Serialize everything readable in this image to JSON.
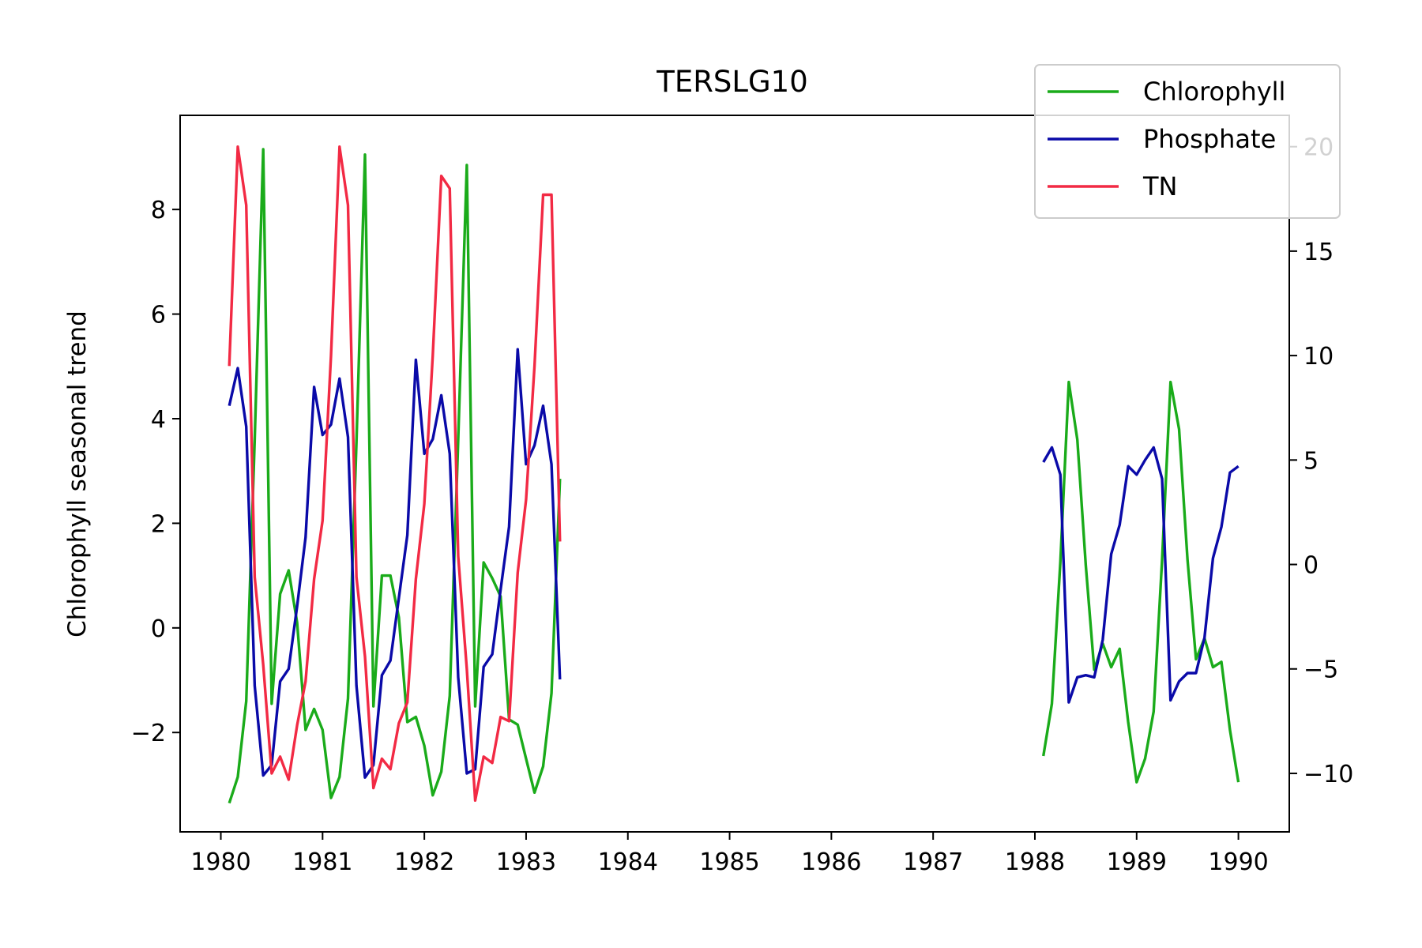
{
  "chart_data": {
    "type": "line",
    "title": "TERSLG10",
    "xlabel": "",
    "ylabel": "Chlorophyll seasonal trend",
    "y2label": "",
    "xlim": [
      1979.6,
      1990.5
    ],
    "ylim": [
      -3.9,
      9.8
    ],
    "y2lim": [
      -12.8,
      21.5
    ],
    "xticks": [
      1980,
      1981,
      1982,
      1983,
      1984,
      1985,
      1986,
      1987,
      1988,
      1989,
      1990
    ],
    "yticks": [
      -2,
      0,
      2,
      4,
      6,
      8
    ],
    "y2ticks": [
      -10,
      -5,
      0,
      5,
      10,
      15,
      20
    ],
    "ytick_labels": [
      "−2",
      "0",
      "2",
      "4",
      "6",
      "8"
    ],
    "y2tick_labels": [
      "−10",
      "−5",
      "0",
      "5",
      "10",
      "15",
      "20"
    ],
    "xtick_labels": [
      "1980",
      "1981",
      "1982",
      "1983",
      "1984",
      "1985",
      "1986",
      "1987",
      "1988",
      "1989",
      "1990"
    ],
    "grid": false,
    "legend_position": "top-right",
    "series": [
      {
        "name": "Chlorophyll",
        "color": "#1aab1a",
        "axis": "left",
        "segments": [
          [
            [
              1980.083,
              -3.35
            ],
            [
              1980.167,
              -2.85
            ],
            [
              1980.25,
              -1.4
            ],
            [
              1980.333,
              3.6
            ],
            [
              1980.417,
              9.15
            ],
            [
              1980.5,
              -1.45
            ],
            [
              1980.583,
              0.65
            ],
            [
              1980.667,
              1.1
            ],
            [
              1980.75,
              0.1
            ],
            [
              1980.833,
              -1.95
            ],
            [
              1980.917,
              -1.55
            ],
            [
              1981.0,
              -1.95
            ],
            [
              1981.083,
              -3.25
            ],
            [
              1981.167,
              -2.85
            ],
            [
              1981.25,
              -1.35
            ],
            [
              1981.333,
              3.55
            ],
            [
              1981.417,
              9.05
            ],
            [
              1981.5,
              -1.5
            ],
            [
              1981.583,
              1.0
            ],
            [
              1981.667,
              1.0
            ],
            [
              1981.75,
              0.2
            ],
            [
              1981.833,
              -1.8
            ],
            [
              1981.917,
              -1.7
            ],
            [
              1982.0,
              -2.25
            ],
            [
              1982.083,
              -3.2
            ],
            [
              1982.167,
              -2.75
            ],
            [
              1982.25,
              -1.3
            ],
            [
              1982.333,
              3.6
            ],
            [
              1982.417,
              8.85
            ],
            [
              1982.5,
              -1.5
            ],
            [
              1982.583,
              1.25
            ],
            [
              1982.667,
              0.95
            ],
            [
              1982.75,
              0.6
            ],
            [
              1982.833,
              -1.75
            ],
            [
              1982.917,
              -1.85
            ],
            [
              1983.0,
              -2.5
            ],
            [
              1983.083,
              -3.15
            ],
            [
              1983.167,
              -2.65
            ],
            [
              1983.25,
              -1.25
            ],
            [
              1983.333,
              2.85
            ]
          ],
          [
            [
              1988.083,
              -2.45
            ],
            [
              1988.167,
              -1.45
            ],
            [
              1988.25,
              1.25
            ],
            [
              1988.333,
              4.7
            ],
            [
              1988.417,
              3.6
            ],
            [
              1988.5,
              1.2
            ],
            [
              1988.583,
              -0.8
            ],
            [
              1988.667,
              -0.3
            ],
            [
              1988.75,
              -0.75
            ],
            [
              1988.833,
              -0.4
            ],
            [
              1988.917,
              -1.8
            ],
            [
              1989.0,
              -2.95
            ],
            [
              1989.083,
              -2.5
            ],
            [
              1989.167,
              -1.6
            ],
            [
              1989.25,
              1.3
            ],
            [
              1989.333,
              4.7
            ],
            [
              1989.417,
              3.8
            ],
            [
              1989.5,
              1.3
            ],
            [
              1989.583,
              -0.6
            ],
            [
              1989.667,
              -0.2
            ],
            [
              1989.75,
              -0.75
            ],
            [
              1989.833,
              -0.65
            ],
            [
              1989.917,
              -1.95
            ],
            [
              1990.0,
              -2.95
            ]
          ]
        ]
      },
      {
        "name": "Phosphate",
        "color": "#0a0aa8",
        "axis": "right",
        "segments": [
          [
            [
              1980.083,
              7.6
            ],
            [
              1980.167,
              9.4
            ],
            [
              1980.25,
              6.6
            ],
            [
              1980.333,
              -5.8
            ],
            [
              1980.417,
              -10.1
            ],
            [
              1980.5,
              -9.6
            ],
            [
              1980.583,
              -5.6
            ],
            [
              1980.667,
              -5.0
            ],
            [
              1980.75,
              -2.0
            ],
            [
              1980.833,
              1.3
            ],
            [
              1980.917,
              8.5
            ],
            [
              1981.0,
              6.2
            ],
            [
              1981.083,
              6.7
            ],
            [
              1981.167,
              8.9
            ],
            [
              1981.25,
              6.1
            ],
            [
              1981.333,
              -5.8
            ],
            [
              1981.417,
              -10.2
            ],
            [
              1981.5,
              -9.6
            ],
            [
              1981.583,
              -5.3
            ],
            [
              1981.667,
              -4.6
            ],
            [
              1981.75,
              -1.6
            ],
            [
              1981.833,
              1.4
            ],
            [
              1981.917,
              9.8
            ],
            [
              1982.0,
              5.3
            ],
            [
              1982.083,
              6.0
            ],
            [
              1982.167,
              8.1
            ],
            [
              1982.25,
              5.3
            ],
            [
              1982.333,
              -5.4
            ],
            [
              1982.417,
              -10.0
            ],
            [
              1982.5,
              -9.8
            ],
            [
              1982.583,
              -4.9
            ],
            [
              1982.667,
              -4.3
            ],
            [
              1982.75,
              -1.2
            ],
            [
              1982.833,
              1.8
            ],
            [
              1982.917,
              10.3
            ],
            [
              1983.0,
              4.8
            ],
            [
              1983.083,
              5.7
            ],
            [
              1983.167,
              7.6
            ],
            [
              1983.25,
              4.8
            ],
            [
              1983.333,
              -5.5
            ]
          ],
          [
            [
              1988.083,
              4.9
            ],
            [
              1988.167,
              5.6
            ],
            [
              1988.25,
              4.3
            ],
            [
              1988.333,
              -6.6
            ],
            [
              1988.417,
              -5.4
            ],
            [
              1988.5,
              -5.3
            ],
            [
              1988.583,
              -5.4
            ],
            [
              1988.667,
              -3.6
            ],
            [
              1988.75,
              0.5
            ],
            [
              1988.833,
              1.9
            ],
            [
              1988.917,
              4.7
            ],
            [
              1989.0,
              4.3
            ],
            [
              1989.083,
              5.0
            ],
            [
              1989.167,
              5.6
            ],
            [
              1989.25,
              4.1
            ],
            [
              1989.333,
              -6.5
            ],
            [
              1989.417,
              -5.6
            ],
            [
              1989.5,
              -5.2
            ],
            [
              1989.583,
              -5.2
            ],
            [
              1989.667,
              -3.5
            ],
            [
              1989.75,
              0.3
            ],
            [
              1989.833,
              1.8
            ],
            [
              1989.917,
              4.4
            ],
            [
              1990.0,
              4.7
            ]
          ]
        ]
      },
      {
        "name": "TN",
        "color": "#f22a44",
        "axis": "right",
        "segments": [
          [
            [
              1980.083,
              9.5
            ],
            [
              1980.167,
              20.0
            ],
            [
              1980.25,
              17.2
            ],
            [
              1980.333,
              -0.6
            ],
            [
              1980.417,
              -4.8
            ],
            [
              1980.5,
              -10.0
            ],
            [
              1980.583,
              -9.2
            ],
            [
              1980.667,
              -10.3
            ],
            [
              1980.75,
              -7.7
            ],
            [
              1980.833,
              -5.6
            ],
            [
              1980.917,
              -0.7
            ],
            [
              1981.0,
              2.1
            ],
            [
              1981.083,
              10.0
            ],
            [
              1981.167,
              20.0
            ],
            [
              1981.25,
              17.2
            ],
            [
              1981.333,
              -0.6
            ],
            [
              1981.417,
              -4.4
            ],
            [
              1981.5,
              -10.7
            ],
            [
              1981.583,
              -9.3
            ],
            [
              1981.667,
              -9.8
            ],
            [
              1981.75,
              -7.6
            ],
            [
              1981.833,
              -6.6
            ],
            [
              1981.917,
              -0.7
            ],
            [
              1982.0,
              2.9
            ],
            [
              1982.083,
              10.0
            ],
            [
              1982.167,
              18.6
            ],
            [
              1982.25,
              18.0
            ],
            [
              1982.333,
              0.4
            ],
            [
              1982.417,
              -5.0
            ],
            [
              1982.5,
              -11.3
            ],
            [
              1982.583,
              -9.2
            ],
            [
              1982.667,
              -9.5
            ],
            [
              1982.75,
              -7.3
            ],
            [
              1982.833,
              -7.5
            ],
            [
              1982.917,
              -0.4
            ],
            [
              1983.0,
              3.1
            ],
            [
              1983.083,
              9.5
            ],
            [
              1983.167,
              17.7
            ],
            [
              1983.25,
              17.7
            ],
            [
              1983.333,
              1.1
            ]
          ]
        ]
      }
    ]
  }
}
